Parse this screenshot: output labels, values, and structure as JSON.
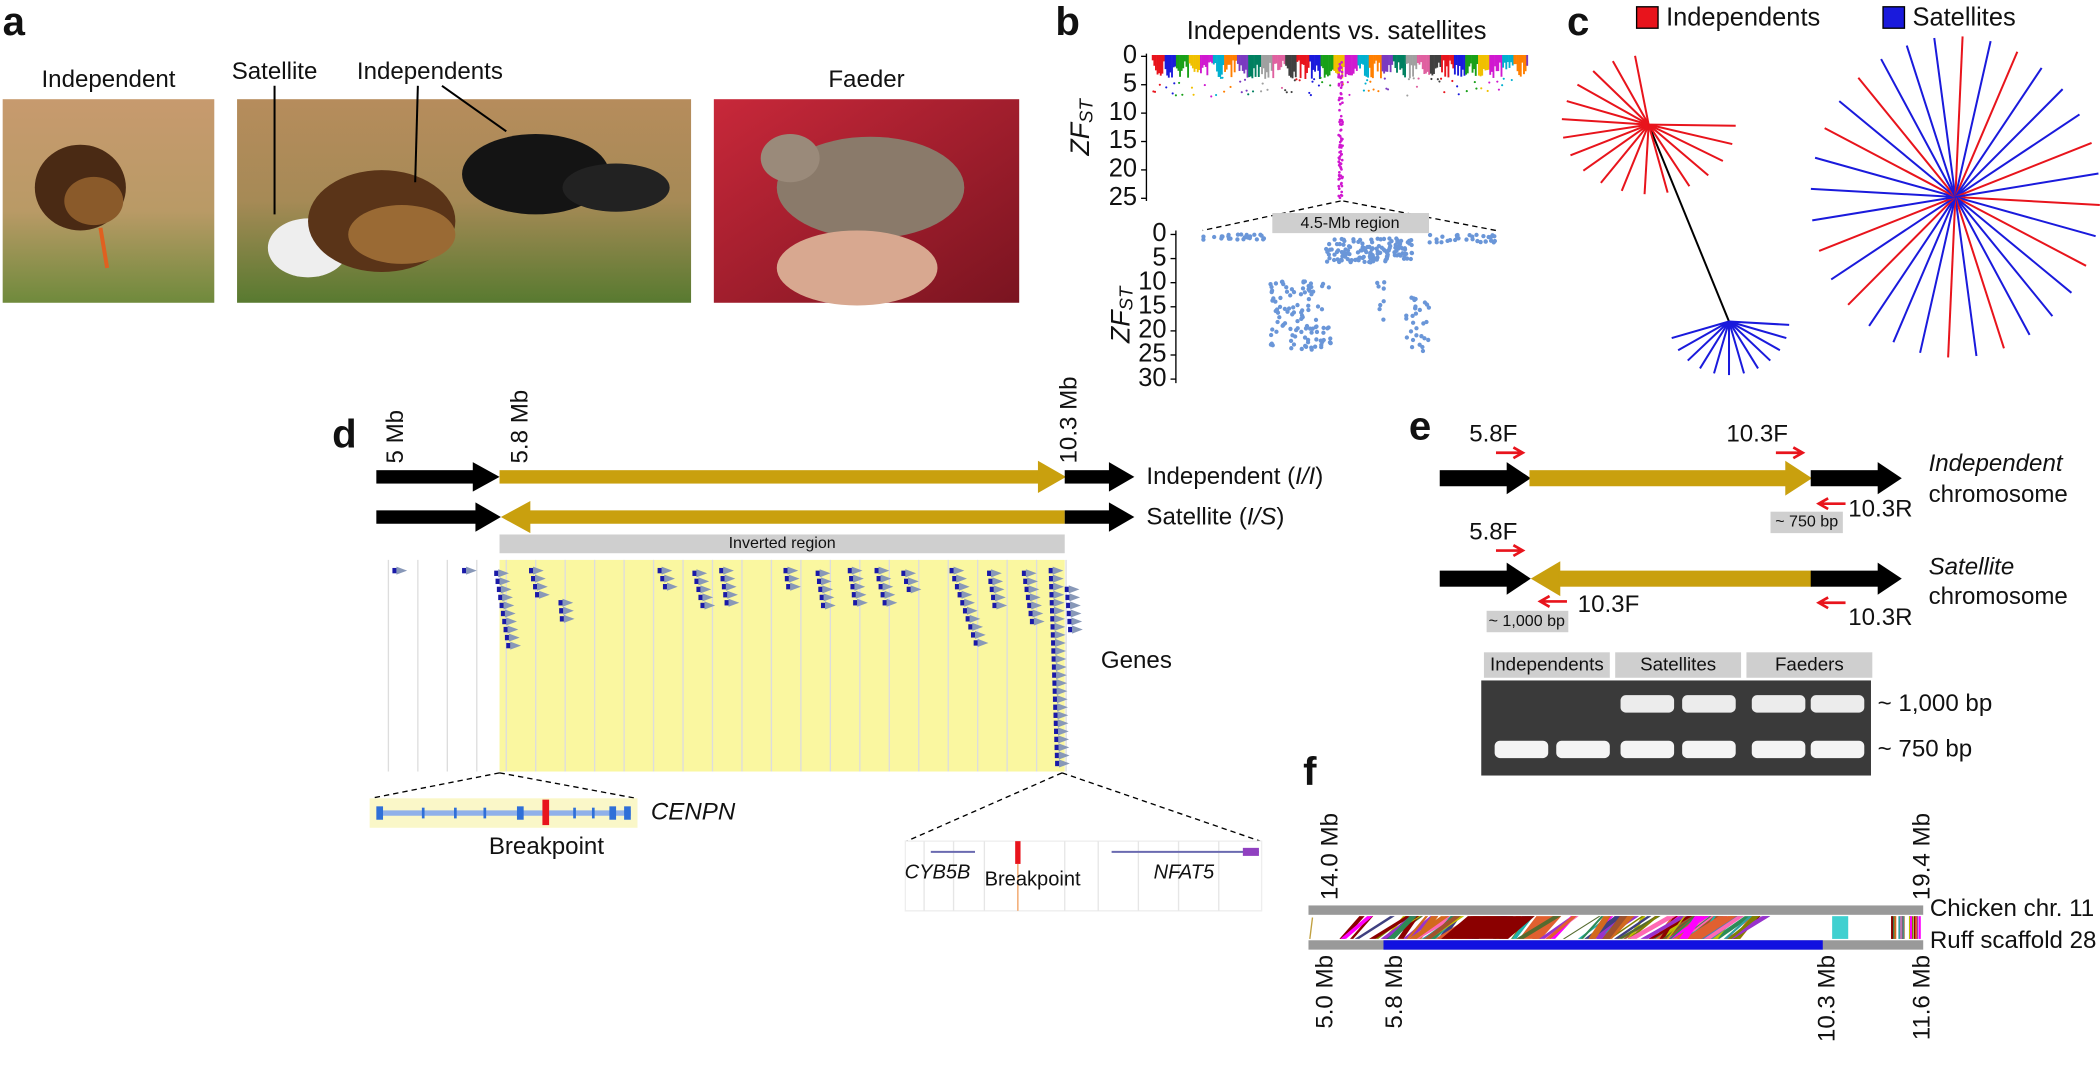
{
  "a": {
    "label": "a",
    "independent": "Independent",
    "satellite": "Satellite",
    "independents": "Independents",
    "faeder": "Faeder"
  },
  "b": {
    "label": "b",
    "title": "Independents vs. satellites",
    "y_label": {
      "main": "ZF",
      "sub": "ST"
    },
    "top_yticks": [
      0,
      5,
      10,
      15,
      20,
      25
    ],
    "region_yticks": [
      0,
      5,
      10,
      15,
      20,
      25,
      30
    ],
    "region": "4.5-Mb region"
  },
  "c": {
    "label": "c",
    "legend": [
      {
        "name": "Independents",
        "color": "#e8141c"
      },
      {
        "name": "Satellites",
        "color": "#1a1adc"
      }
    ]
  },
  "d": {
    "label": "d",
    "positions": [
      "5 Mb",
      "5.8 Mb",
      "10.3 Mb"
    ],
    "rows": [
      {
        "name": "Independent (",
        "genotype": "I/I",
        "close": ")"
      },
      {
        "name": "Satellite (",
        "genotype": "I/S",
        "close": ")"
      }
    ],
    "inverted_region": "Inverted region",
    "genes": "Genes",
    "left_gene": "CENPN",
    "left_breakpoint": "Breakpoint",
    "right_genes": [
      "CYB5B",
      "NFAT5"
    ],
    "right_breakpoint": "Breakpoint"
  },
  "e": {
    "label": "e",
    "primer_f1": "5.8F",
    "primer_f2": "10.3F",
    "primer_r": "10.3R",
    "independent": {
      "name": "Independent",
      "word": "chromosome",
      "product": "~ 750 bp"
    },
    "satellite": {
      "name": "Satellite",
      "word": "chromosome",
      "product": "~ 1,000 bp"
    },
    "gel_groups": [
      "Independents",
      "Satellites",
      "Faeders"
    ],
    "bands": [
      "~ 1,000 bp",
      "~ 750 bp"
    ]
  },
  "f": {
    "label": "f",
    "chicken_range": [
      "14.0 Mb",
      "19.4 Mb"
    ],
    "chicken": "Chicken chr. 11",
    "ruff": "Ruff scaffold 28",
    "ruff_marks": [
      "5.0 Mb",
      "5.8 Mb",
      "10.3 Mb",
      "11.6 Mb"
    ]
  }
}
